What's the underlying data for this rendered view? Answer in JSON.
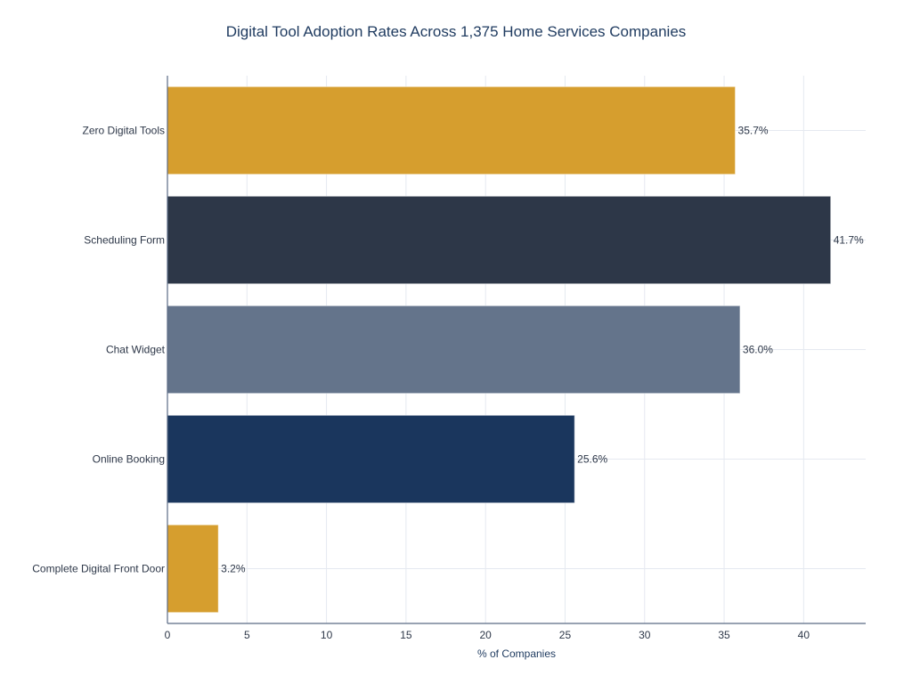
{
  "chart_data": {
    "type": "bar",
    "orientation": "horizontal",
    "title": "Digital Tool Adoption Rates Across 1,375 Home Services Companies",
    "xlabel": "% of Companies",
    "ylabel": "",
    "categories": [
      "Zero Digital Tools",
      "Scheduling Form",
      "Chat Widget",
      "Online Booking",
      "Complete Digital Front Door"
    ],
    "values": [
      35.7,
      41.7,
      36.0,
      25.6,
      3.2
    ],
    "data_labels": [
      "35.7%",
      "41.7%",
      "36.0%",
      "25.6%",
      "3.2%"
    ],
    "colors": [
      "#D69E2E",
      "#2D3748",
      "#64748B",
      "#1A365D",
      "#D69E2E"
    ],
    "xlim": [
      0,
      43.9
    ],
    "xticks": [
      0,
      5,
      10,
      15,
      20,
      25,
      30,
      35,
      40
    ],
    "grid": true,
    "legend": "none"
  }
}
